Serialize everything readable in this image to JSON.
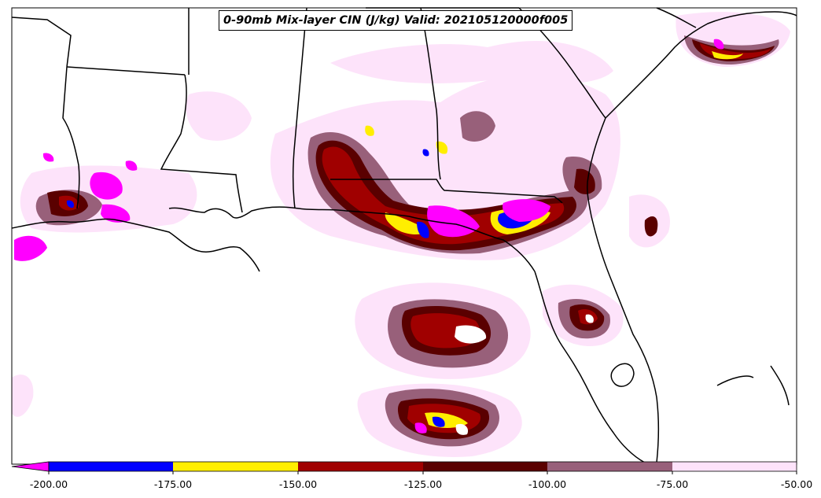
{
  "title": "0-90mb Mix-layer CIN (J/kg) Valid: 202105120000f005",
  "colorbar": {
    "tick_labels": [
      "-200.00",
      "-175.00",
      "-150.00",
      "-125.00",
      "-100.00",
      "-75.00",
      "-50.00"
    ],
    "bins": [
      {
        "from": "-225",
        "to": "-200",
        "color": "#ff00ff"
      },
      {
        "from": "-200",
        "to": "-175",
        "color": "#0000ff"
      },
      {
        "from": "-175",
        "to": "-150",
        "color": "#ffee00"
      },
      {
        "from": "-150",
        "to": "-125",
        "color": "#a00000"
      },
      {
        "from": "-125",
        "to": "-100",
        "color": "#5a0000"
      },
      {
        "from": "-100",
        "to": "-75",
        "color": "#98607a"
      },
      {
        "from": "-75",
        "to": "-50",
        "color": "#fde3fa"
      }
    ]
  },
  "colors": {
    "light_pink": "#fde3fa",
    "mauve": "#98607a",
    "dark_maroon": "#5a0000",
    "red": "#a00000",
    "yellow": "#ffee00",
    "blue": "#0000ff",
    "magenta": "#ff00ff",
    "coastline": "#000000"
  }
}
